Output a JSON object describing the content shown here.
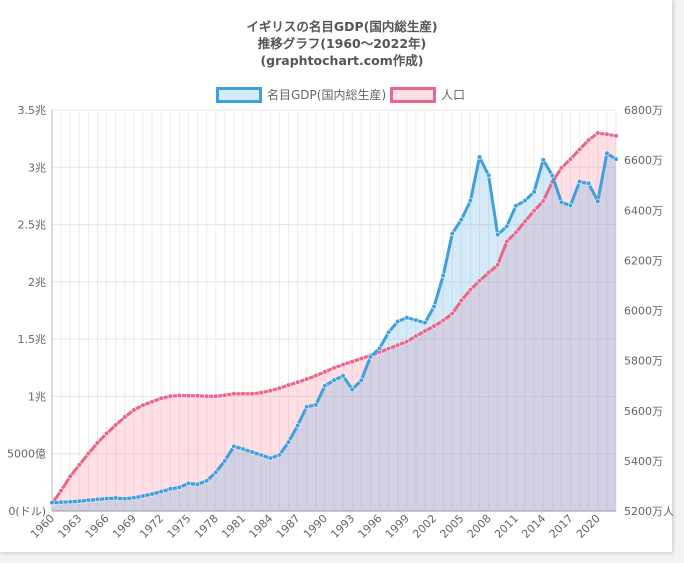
{
  "chart_data": {
    "type": "line",
    "title": [
      "イギリスの名目GDP(国内総生産)",
      "推移グラフ(1960～2022年)",
      "(graphtochart.com作成)"
    ],
    "x": [
      1960,
      1961,
      1962,
      1963,
      1964,
      1965,
      1966,
      1967,
      1968,
      1969,
      1970,
      1971,
      1972,
      1973,
      1974,
      1975,
      1976,
      1977,
      1978,
      1979,
      1980,
      1981,
      1982,
      1983,
      1984,
      1985,
      1986,
      1987,
      1988,
      1989,
      1990,
      1991,
      1992,
      1993,
      1994,
      1995,
      1996,
      1997,
      1998,
      1999,
      2000,
      2001,
      2002,
      2003,
      2004,
      2005,
      2006,
      2007,
      2008,
      2009,
      2010,
      2011,
      2012,
      2013,
      2014,
      2015,
      2016,
      2017,
      2018,
      2019,
      2020,
      2021,
      2022
    ],
    "x_tick_labels": [
      "1960",
      "1963",
      "1966",
      "1969",
      "1972",
      "1975",
      "1978",
      "1981",
      "1984",
      "1987",
      "1990",
      "1993",
      "1996",
      "1999",
      "2002",
      "2005",
      "2008",
      "2011",
      "2014",
      "2017",
      "2020"
    ],
    "series": [
      {
        "name": "名目GDP(国内総生産)",
        "axis": "left",
        "unit": "兆ドル",
        "color": "#3ea0dd",
        "fill": "rgba(62,160,221,0.22)",
        "values": [
          0.073,
          0.077,
          0.081,
          0.086,
          0.094,
          0.101,
          0.108,
          0.113,
          0.107,
          0.116,
          0.131,
          0.148,
          0.169,
          0.193,
          0.206,
          0.241,
          0.232,
          0.263,
          0.336,
          0.438,
          0.565,
          0.541,
          0.515,
          0.489,
          0.461,
          0.489,
          0.601,
          0.745,
          0.91,
          0.926,
          1.093,
          1.142,
          1.18,
          1.061,
          1.141,
          1.345,
          1.419,
          1.56,
          1.654,
          1.687,
          1.666,
          1.643,
          1.785,
          2.054,
          2.422,
          2.543,
          2.709,
          3.09,
          2.929,
          2.412,
          2.485,
          2.664,
          2.708,
          2.785,
          3.065,
          2.928,
          2.694,
          2.667,
          2.875,
          2.858,
          2.704,
          3.123,
          3.071
        ]
      },
      {
        "name": "人口",
        "axis": "right",
        "unit": "万人",
        "color": "#e8668a",
        "fill": "rgba(255,110,140,0.22)",
        "values": [
          5230,
          5281,
          5338,
          5384,
          5429,
          5472,
          5509,
          5543,
          5575,
          5603,
          5622,
          5636,
          5650,
          5658,
          5661,
          5660,
          5660,
          5658,
          5658,
          5662,
          5668,
          5668,
          5668,
          5672,
          5680,
          5690,
          5702,
          5714,
          5726,
          5740,
          5755,
          5771,
          5784,
          5796,
          5808,
          5821,
          5834,
          5848,
          5862,
          5876,
          5898,
          5918,
          5938,
          5960,
          5988,
          6040,
          6083,
          6118,
          6151,
          6182,
          6276,
          6311,
          6356,
          6398,
          6437,
          6513,
          6569,
          6604,
          6643,
          6680,
          6708,
          6703,
          6697
        ]
      }
    ],
    "y_left": {
      "range": [
        0,
        3.5
      ],
      "tick_labels": [
        "0(ドル)",
        "5000億",
        "1兆",
        "1.5兆",
        "2兆",
        "2.5兆",
        "3兆",
        "3.5兆"
      ]
    },
    "y_right": {
      "range": [
        5200,
        6800
      ],
      "tick_labels": [
        "5200万人",
        "5400万",
        "5600万",
        "5800万",
        "6000万",
        "6200万",
        "6400万",
        "6600万",
        "6800万"
      ]
    },
    "legend_position": "top",
    "grid": true
  }
}
